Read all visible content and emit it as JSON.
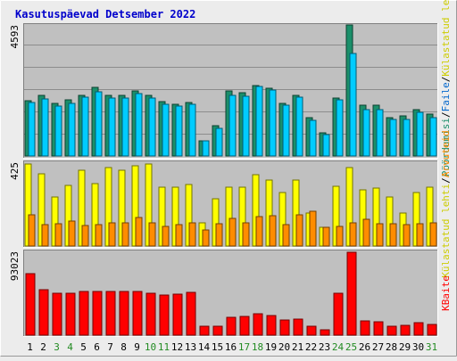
{
  "chart_data": {
    "title": "Kasutuspäevad Detsember 2022",
    "type": "bar",
    "days": [
      "1",
      "2",
      "3",
      "4",
      "5",
      "6",
      "7",
      "8",
      "9",
      "10",
      "11",
      "12",
      "13",
      "14",
      "15",
      "16",
      "17",
      "18",
      "19",
      "20",
      "21",
      "22",
      "23",
      "24",
      "25",
      "26",
      "27",
      "28",
      "29",
      "30",
      "31"
    ],
    "weekend_days": [
      "3",
      "4",
      "10",
      "11",
      "17",
      "18",
      "24",
      "25",
      "31"
    ],
    "panels": [
      {
        "id": "top",
        "ymax": 4593,
        "ymax_label": "4593",
        "legend": [
          "Pöördumisi",
          "Faile",
          "Külastatud lehti"
        ],
        "series": [
          {
            "name": "Pöördumisi",
            "color": "#1b8f6a",
            "values": [
              1950,
              2120,
              1830,
              1960,
              2140,
              2420,
              2120,
              2140,
              2280,
              2120,
              1910,
              1820,
              1880,
              520,
              1050,
              2270,
              2230,
              2470,
              2380,
              1850,
              2120,
              1330,
              800,
              2040,
              4580,
              1780,
              1780,
              1350,
              1400,
              1620,
              1480
            ]
          },
          {
            "name": "Faile",
            "color": "#00ccff",
            "values": [
              1870,
              2000,
              1740,
              1850,
              2060,
              2260,
              2030,
              2040,
              2200,
              2020,
              1820,
              1760,
              1800,
              520,
              960,
              2110,
              2100,
              2430,
              2320,
              1780,
              2060,
              1240,
              740,
              1980,
              3580,
              1640,
              1640,
              1290,
              1290,
              1520,
              1340
            ]
          }
        ]
      },
      {
        "id": "middle",
        "ymax": 425,
        "ymax_label": "425",
        "legend": [
          "Külastatud lehti",
          "Arvuteid"
        ],
        "series": [
          {
            "name": "Külastatud lehti",
            "color": "#ffff00",
            "values": [
              420,
              370,
              250,
              310,
              390,
              320,
              400,
              390,
              410,
              420,
              300,
              300,
              315,
              120,
              240,
              300,
              300,
              365,
              340,
              275,
              340,
              170,
              95,
              305,
              400,
              290,
              295,
              250,
              170,
              275,
              300
            ]
          },
          {
            "name": "Arvuteid",
            "color": "#ff8c00",
            "values": [
              160,
              110,
              115,
              130,
              105,
              110,
              120,
              120,
              145,
              120,
              100,
              110,
              120,
              80,
              115,
              140,
              120,
              150,
              155,
              110,
              160,
              180,
              95,
              100,
              120,
              135,
              115,
              115,
              110,
              115,
              120
            ]
          }
        ]
      },
      {
        "id": "bottom",
        "ymax": 93023,
        "ymax_label": "93023",
        "legend": [
          "KBaite"
        ],
        "series": [
          {
            "name": "KBaite",
            "color": "#ff0000",
            "values": [
              69000,
              51000,
              47500,
              47500,
              49000,
              49000,
              49000,
              49000,
              49000,
              47000,
              45000,
              46500,
              48000,
              10000,
              10000,
              20000,
              21500,
              24000,
              22000,
              17000,
              18000,
              10000,
              6000,
              47000,
              93023,
              16000,
              15000,
              10500,
              11000,
              14000,
              12000
            ]
          }
        ]
      }
    ]
  }
}
